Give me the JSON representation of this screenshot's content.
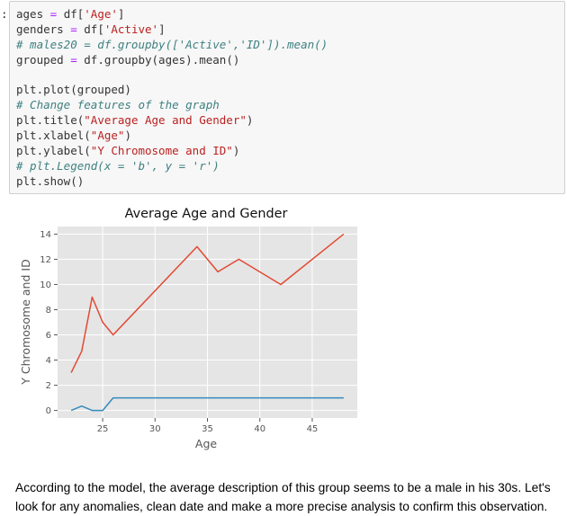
{
  "prompt_marker": ":",
  "code_cell": {
    "lines": [
      [
        {
          "t": "ages ",
          "c": ""
        },
        {
          "t": "=",
          "c": "op"
        },
        {
          "t": " df[",
          "c": ""
        },
        {
          "t": "'Age'",
          "c": "str"
        },
        {
          "t": "]",
          "c": ""
        }
      ],
      [
        {
          "t": "genders ",
          "c": ""
        },
        {
          "t": "=",
          "c": "op"
        },
        {
          "t": " df[",
          "c": ""
        },
        {
          "t": "'Active'",
          "c": "str"
        },
        {
          "t": "]",
          "c": ""
        }
      ],
      [
        {
          "t": "# males20 = df.groupby(['Active','ID']).mean()",
          "c": "comment"
        }
      ],
      [
        {
          "t": "grouped ",
          "c": ""
        },
        {
          "t": "=",
          "c": "op"
        },
        {
          "t": " df.groupby(ages).mean()",
          "c": ""
        }
      ],
      [
        {
          "t": "",
          "c": ""
        }
      ],
      [
        {
          "t": "plt.plot(grouped)",
          "c": ""
        }
      ],
      [
        {
          "t": "# Change features of the graph",
          "c": "comment"
        }
      ],
      [
        {
          "t": "plt.title(",
          "c": ""
        },
        {
          "t": "\"Average Age and Gender\"",
          "c": "str"
        },
        {
          "t": ")",
          "c": ""
        }
      ],
      [
        {
          "t": "plt.xlabel(",
          "c": ""
        },
        {
          "t": "\"Age\"",
          "c": "str"
        },
        {
          "t": ")",
          "c": ""
        }
      ],
      [
        {
          "t": "plt.ylabel(",
          "c": ""
        },
        {
          "t": "\"Y Chromosome and ID\"",
          "c": "str"
        },
        {
          "t": ")",
          "c": ""
        }
      ],
      [
        {
          "t": "# plt.Legend(x = 'b', y = 'r')",
          "c": "comment"
        }
      ],
      [
        {
          "t": "plt.show()",
          "c": ""
        }
      ]
    ]
  },
  "chart_data": {
    "type": "line",
    "title": "Average Age and Gender",
    "xlabel": "Age",
    "ylabel": "Y Chromosome and ID",
    "xlim": [
      20.7,
      49.3
    ],
    "ylim": [
      -0.6,
      14.6
    ],
    "xticks": [
      25,
      30,
      35,
      40,
      45
    ],
    "yticks": [
      0,
      2,
      4,
      6,
      8,
      10,
      12,
      14
    ],
    "grid": true,
    "series": [
      {
        "color": "#e24a33",
        "x": [
          22,
          23,
          24,
          25,
          26,
          34,
          36,
          38,
          42,
          48
        ],
        "y": [
          3,
          4.7,
          9,
          7,
          6,
          13,
          11,
          12,
          10,
          14
        ]
      },
      {
        "color": "#348abd",
        "x": [
          22,
          23,
          24,
          25,
          26,
          34,
          36,
          38,
          42,
          48
        ],
        "y": [
          0,
          0.35,
          0,
          0,
          1,
          1,
          1,
          1,
          1,
          1
        ]
      }
    ]
  },
  "markdown": {
    "text": "According to the model, the average description of this group seems to be a male in his 30s. Let's look for any anomalies, clean date and make a more precise analysis to confirm this observation."
  }
}
